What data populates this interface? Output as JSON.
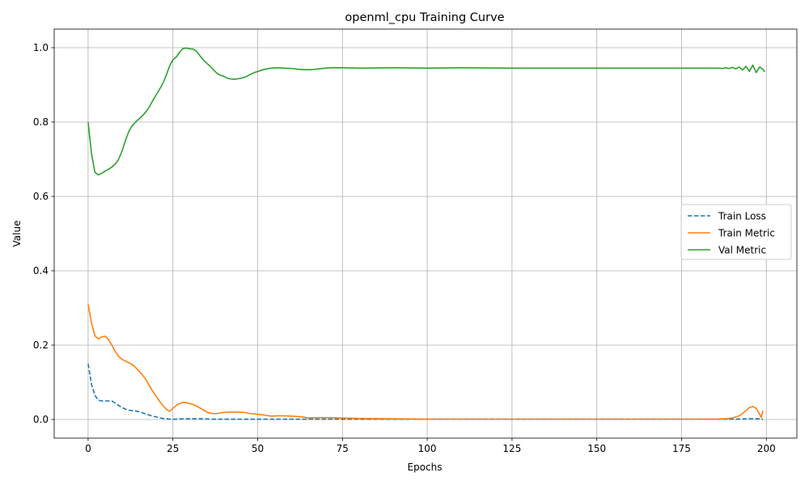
{
  "chart_data": {
    "type": "line",
    "title": "openml_cpu Training Curve",
    "xlabel": "Epochs",
    "ylabel": "Value",
    "xlim": [
      -10,
      209
    ],
    "ylim": [
      -0.05,
      1.05
    ],
    "xticks": [
      0,
      25,
      50,
      75,
      100,
      125,
      150,
      175,
      200
    ],
    "yticks": [
      0.0,
      0.2,
      0.4,
      0.6,
      0.8,
      1.0
    ],
    "xtick_labels": [
      "0",
      "25",
      "50",
      "75",
      "100",
      "125",
      "150",
      "175",
      "200"
    ],
    "ytick_labels": [
      "0.0",
      "0.2",
      "0.4",
      "0.6",
      "0.8",
      "1.0"
    ],
    "grid": true,
    "legend_position": "center-right",
    "series": [
      {
        "name": "Train Loss",
        "color": "#1f77b4",
        "style": "dashed",
        "points": [
          [
            0,
            0.15
          ],
          [
            1,
            0.095
          ],
          [
            2,
            0.065
          ],
          [
            3,
            0.052
          ],
          [
            4,
            0.05
          ],
          [
            5,
            0.05
          ],
          [
            6,
            0.05
          ],
          [
            7,
            0.05
          ],
          [
            8,
            0.044
          ],
          [
            9,
            0.038
          ],
          [
            10,
            0.032
          ],
          [
            11,
            0.028
          ],
          [
            12,
            0.025
          ],
          [
            13,
            0.024
          ],
          [
            14,
            0.023
          ],
          [
            15,
            0.021
          ],
          [
            16,
            0.018
          ],
          [
            17,
            0.015
          ],
          [
            18,
            0.012
          ],
          [
            19,
            0.009
          ],
          [
            20,
            0.007
          ],
          [
            21,
            0.005
          ],
          [
            22,
            0.003
          ],
          [
            23,
            0.002
          ],
          [
            24,
            0.001
          ],
          [
            25,
            0.001
          ],
          [
            26,
            0.001
          ],
          [
            28,
            0.002
          ],
          [
            30,
            0.002
          ],
          [
            32,
            0.002
          ],
          [
            34,
            0.002
          ],
          [
            36,
            0.001
          ],
          [
            40,
            0.001
          ],
          [
            45,
            0.001
          ],
          [
            50,
            0.001
          ],
          [
            75,
            0.001
          ],
          [
            100,
            0.001
          ],
          [
            125,
            0.001
          ],
          [
            150,
            0.001
          ],
          [
            175,
            0.001
          ],
          [
            190,
            0.001
          ],
          [
            195,
            0.002
          ],
          [
            197,
            0.002
          ],
          [
            198,
            0.002
          ],
          [
            199,
            0.001
          ]
        ]
      },
      {
        "name": "Train Metric",
        "color": "#ff7f0e",
        "style": "solid",
        "points": [
          [
            0,
            0.31
          ],
          [
            1,
            0.26
          ],
          [
            2,
            0.225
          ],
          [
            3,
            0.217
          ],
          [
            4,
            0.222
          ],
          [
            5,
            0.224
          ],
          [
            6,
            0.215
          ],
          [
            7,
            0.2
          ],
          [
            8,
            0.183
          ],
          [
            9,
            0.17
          ],
          [
            10,
            0.162
          ],
          [
            11,
            0.157
          ],
          [
            12,
            0.153
          ],
          [
            13,
            0.148
          ],
          [
            14,
            0.14
          ],
          [
            15,
            0.13
          ],
          [
            16,
            0.12
          ],
          [
            17,
            0.108
          ],
          [
            18,
            0.092
          ],
          [
            19,
            0.077
          ],
          [
            20,
            0.063
          ],
          [
            21,
            0.05
          ],
          [
            22,
            0.038
          ],
          [
            23,
            0.028
          ],
          [
            24,
            0.022
          ],
          [
            25,
            0.03
          ],
          [
            26,
            0.038
          ],
          [
            27,
            0.043
          ],
          [
            28,
            0.046
          ],
          [
            29,
            0.045
          ],
          [
            30,
            0.043
          ],
          [
            31,
            0.04
          ],
          [
            32,
            0.036
          ],
          [
            33,
            0.031
          ],
          [
            34,
            0.026
          ],
          [
            35,
            0.02
          ],
          [
            36,
            0.017
          ],
          [
            37,
            0.016
          ],
          [
            38,
            0.016
          ],
          [
            39,
            0.018
          ],
          [
            40,
            0.019
          ],
          [
            42,
            0.02
          ],
          [
            44,
            0.02
          ],
          [
            46,
            0.019
          ],
          [
            48,
            0.016
          ],
          [
            50,
            0.014
          ],
          [
            52,
            0.012
          ],
          [
            54,
            0.009
          ],
          [
            56,
            0.01
          ],
          [
            58,
            0.01
          ],
          [
            60,
            0.009
          ],
          [
            62,
            0.008
          ],
          [
            64,
            0.006
          ],
          [
            65,
            0.004
          ],
          [
            67,
            0.005
          ],
          [
            70,
            0.005
          ],
          [
            72,
            0.005
          ],
          [
            75,
            0.004
          ],
          [
            80,
            0.003
          ],
          [
            90,
            0.002
          ],
          [
            100,
            0.001
          ],
          [
            125,
            0.001
          ],
          [
            150,
            0.001
          ],
          [
            175,
            0.001
          ],
          [
            185,
            0.001
          ],
          [
            188,
            0.002
          ],
          [
            190,
            0.004
          ],
          [
            191,
            0.007
          ],
          [
            192,
            0.01
          ],
          [
            193,
            0.016
          ],
          [
            194,
            0.024
          ],
          [
            195,
            0.032
          ],
          [
            196,
            0.035
          ],
          [
            197,
            0.03
          ],
          [
            198,
            0.015
          ],
          [
            198.5,
            0.005
          ],
          [
            199,
            0.024
          ]
        ]
      },
      {
        "name": "Val Metric",
        "color": "#2ca02c",
        "style": "solid",
        "points": [
          [
            0,
            0.8
          ],
          [
            1,
            0.715
          ],
          [
            2,
            0.665
          ],
          [
            3,
            0.658
          ],
          [
            4,
            0.662
          ],
          [
            5,
            0.668
          ],
          [
            6,
            0.673
          ],
          [
            7,
            0.679
          ],
          [
            8,
            0.687
          ],
          [
            9,
            0.7
          ],
          [
            10,
            0.722
          ],
          [
            11,
            0.75
          ],
          [
            12,
            0.775
          ],
          [
            13,
            0.79
          ],
          [
            14,
            0.8
          ],
          [
            15,
            0.808
          ],
          [
            16,
            0.817
          ],
          [
            17,
            0.827
          ],
          [
            18,
            0.84
          ],
          [
            19,
            0.857
          ],
          [
            20,
            0.872
          ],
          [
            21,
            0.887
          ],
          [
            22,
            0.903
          ],
          [
            23,
            0.925
          ],
          [
            24,
            0.95
          ],
          [
            25,
            0.968
          ],
          [
            26,
            0.975
          ],
          [
            27,
            0.988
          ],
          [
            28,
            0.998
          ],
          [
            29,
            0.999
          ],
          [
            30,
            0.997
          ],
          [
            31,
            0.996
          ],
          [
            32,
            0.99
          ],
          [
            33,
            0.978
          ],
          [
            34,
            0.967
          ],
          [
            35,
            0.958
          ],
          [
            36,
            0.95
          ],
          [
            37,
            0.94
          ],
          [
            38,
            0.931
          ],
          [
            39,
            0.926
          ],
          [
            40,
            0.923
          ],
          [
            41,
            0.918
          ],
          [
            42,
            0.916
          ],
          [
            43,
            0.915
          ],
          [
            44,
            0.916
          ],
          [
            45,
            0.918
          ],
          [
            46,
            0.92
          ],
          [
            47,
            0.924
          ],
          [
            48,
            0.929
          ],
          [
            49,
            0.933
          ],
          [
            50,
            0.936
          ],
          [
            52,
            0.942
          ],
          [
            54,
            0.945
          ],
          [
            56,
            0.946
          ],
          [
            58,
            0.945
          ],
          [
            60,
            0.944
          ],
          [
            62,
            0.942
          ],
          [
            64,
            0.941
          ],
          [
            66,
            0.941
          ],
          [
            68,
            0.943
          ],
          [
            70,
            0.945
          ],
          [
            72,
            0.946
          ],
          [
            75,
            0.946
          ],
          [
            80,
            0.945
          ],
          [
            90,
            0.946
          ],
          [
            100,
            0.945
          ],
          [
            110,
            0.946
          ],
          [
            125,
            0.945
          ],
          [
            150,
            0.945
          ],
          [
            175,
            0.945
          ],
          [
            186,
            0.945
          ],
          [
            187,
            0.944
          ],
          [
            188,
            0.946
          ],
          [
            189,
            0.944
          ],
          [
            190,
            0.947
          ],
          [
            191,
            0.943
          ],
          [
            192,
            0.948
          ],
          [
            193,
            0.94
          ],
          [
            194,
            0.95
          ],
          [
            195,
            0.936
          ],
          [
            196,
            0.953
          ],
          [
            197,
            0.933
          ],
          [
            198,
            0.948
          ],
          [
            199,
            0.942
          ],
          [
            199.5,
            0.935
          ]
        ]
      }
    ]
  }
}
